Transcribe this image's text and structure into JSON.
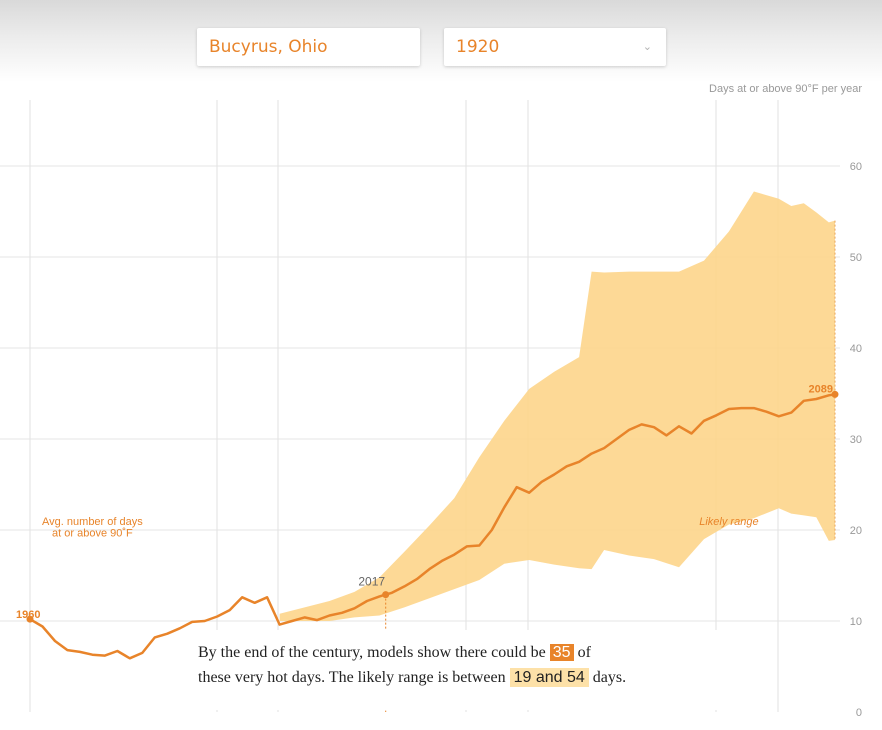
{
  "controls": {
    "location_value": "Bucyrus, Ohio",
    "year_value": "1920"
  },
  "caption": {
    "part1": "By the end of the century, models show there could be",
    "value": "35",
    "part2": "of",
    "part3": "these very hot days. The likely range is between",
    "range": "19 and 54",
    "part4": "days."
  },
  "colors": {
    "accent": "#e8842a",
    "range_fill": "#fdd58b",
    "grid": "#dddddd"
  },
  "icons": {
    "year_dropdown": "chevron-down-icon"
  },
  "chart_data": {
    "type": "area",
    "title": "",
    "ylabel": "Days at or above 90°F per year",
    "ylim": [
      0,
      60
    ],
    "y_ticks": [
      0,
      10,
      20,
      30,
      40,
      50,
      60
    ],
    "xlim": [
      1960,
      2089
    ],
    "grid": true,
    "series": [
      {
        "name": "Avg. number of days at or above 90˚F",
        "x": [
          1960,
          1962,
          1964,
          1966,
          1968,
          1970,
          1972,
          1974,
          1976,
          1978,
          1980,
          1982,
          1984,
          1986,
          1988,
          1990,
          1992,
          1994,
          1996,
          1998,
          2000,
          2002,
          2004,
          2006,
          2008,
          2010,
          2012,
          2014,
          2016,
          2017,
          2018,
          2020,
          2022,
          2024,
          2026,
          2028,
          2030,
          2032,
          2034,
          2036,
          2038,
          2040,
          2042,
          2044,
          2046,
          2048,
          2050,
          2052,
          2054,
          2056,
          2058,
          2060,
          2062,
          2064,
          2066,
          2068,
          2070,
          2072,
          2074,
          2076,
          2078,
          2080,
          2082,
          2084,
          2086,
          2088,
          2089
        ],
        "values": [
          10.2,
          9.4,
          7.8,
          6.8,
          6.6,
          6.3,
          6.2,
          6.7,
          5.9,
          6.5,
          8.2,
          8.6,
          9.2,
          9.9,
          10.0,
          10.5,
          11.2,
          12.6,
          12.0,
          12.6,
          9.6,
          10.0,
          10.4,
          10.1,
          10.6,
          10.9,
          11.4,
          12.2,
          12.7,
          12.9,
          13.1,
          13.8,
          14.6,
          15.7,
          16.6,
          17.3,
          18.2,
          18.3,
          20.0,
          22.5,
          24.7,
          24.1,
          25.3,
          26.1,
          27.0,
          27.5,
          28.4,
          29.0,
          30.0,
          31.0,
          31.6,
          31.3,
          30.4,
          31.4,
          30.6,
          32.0,
          32.6,
          33.3,
          33.4,
          33.4,
          33.0,
          32.5,
          32.9,
          34.2,
          34.4,
          34.8,
          34.9
        ]
      },
      {
        "name": "Likely range",
        "x": [
          2000,
          2004,
          2008,
          2012,
          2016,
          2020,
          2024,
          2028,
          2032,
          2036,
          2040,
          2044,
          2048,
          2050,
          2052,
          2056,
          2060,
          2064,
          2068,
          2072,
          2076,
          2080,
          2082,
          2084,
          2086,
          2088,
          2089
        ],
        "low": [
          10.0,
          10.0,
          10.0,
          10.4,
          10.6,
          11.5,
          12.5,
          13.5,
          14.5,
          16.3,
          16.7,
          16.2,
          15.8,
          15.7,
          17.8,
          17.2,
          16.8,
          15.9,
          19.0,
          20.6,
          21.3,
          22.4,
          21.8,
          21.6,
          21.4,
          18.8,
          18.9
        ],
        "high": [
          10.8,
          11.5,
          12.2,
          13.2,
          14.8,
          17.6,
          20.5,
          23.5,
          28.0,
          32.0,
          35.5,
          37.4,
          39.0,
          48.4,
          48.3,
          48.4,
          48.4,
          48.4,
          49.6,
          52.8,
          57.2,
          56.4,
          55.6,
          55.9,
          54.9,
          53.8,
          54.0
        ]
      }
    ],
    "annotations": [
      {
        "text": "1960",
        "x": 1960,
        "y": 10.2
      },
      {
        "text": "2017",
        "x": 2017,
        "y": 12.9
      },
      {
        "text": "2089",
        "x": 2089,
        "y": 34.9
      },
      {
        "text": "Likely range",
        "x": 2072,
        "y": 21
      },
      {
        "text": "Avg. number of days",
        "x": 1970,
        "y": 21
      },
      {
        "text": "at or above 90˚F",
        "x": 1970,
        "y": 19.7
      }
    ]
  }
}
